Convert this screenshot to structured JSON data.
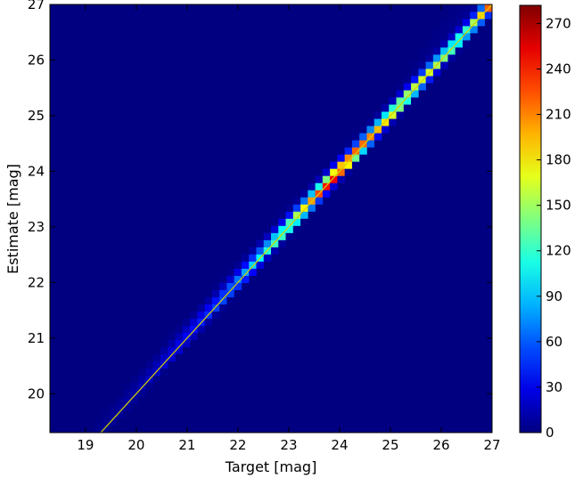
{
  "chart_data": {
    "type": "heatmap",
    "xlabel": "Target [mag]",
    "ylabel": "Estimate [mag]",
    "xlim": [
      18.3,
      27.0
    ],
    "ylim": [
      19.3,
      27.0
    ],
    "x_ticks": [
      19,
      20,
      21,
      22,
      23,
      24,
      25,
      26,
      27
    ],
    "y_ticks": [
      20,
      21,
      22,
      23,
      24,
      25,
      26,
      27
    ],
    "bins": 60,
    "colormap": "jet",
    "colorbar": {
      "min": 0,
      "max": 282,
      "ticks": [
        0,
        30,
        60,
        90,
        120,
        150,
        180,
        210,
        240,
        270
      ]
    },
    "one_to_one_line": {
      "present": true,
      "color": "#d4d000"
    },
    "ridge_profile": [
      {
        "x": 19.3,
        "peak": 4
      },
      {
        "x": 20.0,
        "peak": 12
      },
      {
        "x": 20.5,
        "peak": 22
      },
      {
        "x": 21.0,
        "peak": 35
      },
      {
        "x": 21.5,
        "peak": 50
      },
      {
        "x": 22.0,
        "peak": 75
      },
      {
        "x": 22.5,
        "peak": 110
      },
      {
        "x": 23.0,
        "peak": 150
      },
      {
        "x": 23.5,
        "peak": 215
      },
      {
        "x": 23.9,
        "peak": 270
      },
      {
        "x": 24.3,
        "peak": 250
      },
      {
        "x": 24.8,
        "peak": 190
      },
      {
        "x": 25.5,
        "peak": 170
      },
      {
        "x": 26.0,
        "peak": 150
      },
      {
        "x": 26.5,
        "peak": 130
      },
      {
        "x": 27.0,
        "peak": 220
      }
    ]
  }
}
